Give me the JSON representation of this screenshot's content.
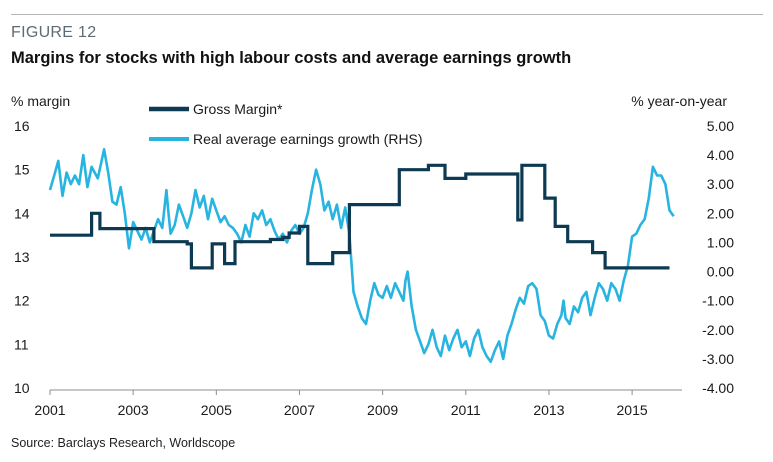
{
  "figure": {
    "label": "FIGURE 12",
    "title": "Margins for stocks with high labour costs and average earnings growth",
    "source": "Source: Barclays Research, Worldscope"
  },
  "chart_data": {
    "type": "line",
    "left_axis_label": "% margin",
    "right_axis_label": "% year-on-year",
    "ylim_left": [
      10,
      16
    ],
    "yticks_left": [
      "16",
      "15",
      "14",
      "13",
      "12",
      "11",
      "10"
    ],
    "ylim_right": [
      -4,
      5
    ],
    "yticks_right": [
      "5.00",
      "4.00",
      "3.00",
      "2.00",
      "1.00",
      "0.00",
      "-1.00",
      "-2.00",
      "-3.00",
      "-4.00"
    ],
    "xlim": [
      2001,
      2016.2
    ],
    "xticks": [
      "2001",
      "2003",
      "2005",
      "2007",
      "2009",
      "2011",
      "2013",
      "2015"
    ],
    "grid": false,
    "legend_position": "top-center",
    "colors": {
      "gross_margin": "#0d3a52",
      "earnings_growth": "#28b4e0"
    },
    "series": [
      {
        "name": "Gross Margin*",
        "axis": "left",
        "step": true,
        "points": [
          [
            2001.0,
            13.5
          ],
          [
            2002.0,
            14.0
          ],
          [
            2002.2,
            13.65
          ],
          [
            2003.5,
            13.35
          ],
          [
            2004.0,
            13.35
          ],
          [
            2004.3,
            13.3
          ],
          [
            2004.4,
            12.75
          ],
          [
            2004.9,
            13.3
          ],
          [
            2005.2,
            12.85
          ],
          [
            2005.45,
            13.35
          ],
          [
            2006.0,
            13.35
          ],
          [
            2006.3,
            13.4
          ],
          [
            2006.6,
            13.45
          ],
          [
            2006.75,
            13.55
          ],
          [
            2007.0,
            13.7
          ],
          [
            2007.2,
            12.85
          ],
          [
            2007.8,
            13.1
          ],
          [
            2008.2,
            14.2
          ],
          [
            2008.8,
            14.2
          ],
          [
            2009.4,
            15.0
          ],
          [
            2010.1,
            15.1
          ],
          [
            2010.5,
            14.8
          ],
          [
            2011.0,
            14.9
          ],
          [
            2011.6,
            14.9
          ],
          [
            2012.25,
            13.85
          ],
          [
            2012.35,
            15.1
          ],
          [
            2012.9,
            14.35
          ],
          [
            2013.15,
            13.7
          ],
          [
            2013.45,
            13.35
          ],
          [
            2014.05,
            13.1
          ],
          [
            2014.35,
            12.75
          ],
          [
            2015.9,
            12.75
          ]
        ]
      },
      {
        "name": "Real average  earnings growth (RHS)",
        "axis": "right",
        "step": false,
        "points": [
          [
            2001.0,
            2.8
          ],
          [
            2001.1,
            3.3
          ],
          [
            2001.2,
            3.8
          ],
          [
            2001.3,
            2.6
          ],
          [
            2001.4,
            3.4
          ],
          [
            2001.5,
            3.0
          ],
          [
            2001.6,
            3.3
          ],
          [
            2001.7,
            3.0
          ],
          [
            2001.8,
            4.0
          ],
          [
            2001.9,
            2.9
          ],
          [
            2002.0,
            3.6
          ],
          [
            2002.15,
            3.2
          ],
          [
            2002.3,
            4.2
          ],
          [
            2002.4,
            3.4
          ],
          [
            2002.5,
            2.4
          ],
          [
            2002.6,
            2.3
          ],
          [
            2002.7,
            2.9
          ],
          [
            2002.8,
            2.0
          ],
          [
            2002.9,
            0.8
          ],
          [
            2003.0,
            1.7
          ],
          [
            2003.1,
            1.4
          ],
          [
            2003.2,
            1.1
          ],
          [
            2003.3,
            1.5
          ],
          [
            2003.4,
            1.0
          ],
          [
            2003.5,
            1.4
          ],
          [
            2003.6,
            1.8
          ],
          [
            2003.7,
            1.5
          ],
          [
            2003.8,
            2.8
          ],
          [
            2003.85,
            2.0
          ],
          [
            2003.9,
            1.3
          ],
          [
            2004.0,
            1.6
          ],
          [
            2004.1,
            2.3
          ],
          [
            2004.2,
            1.9
          ],
          [
            2004.3,
            1.5
          ],
          [
            2004.4,
            2.0
          ],
          [
            2004.5,
            2.8
          ],
          [
            2004.6,
            2.2
          ],
          [
            2004.7,
            2.6
          ],
          [
            2004.8,
            1.8
          ],
          [
            2004.9,
            2.5
          ],
          [
            2005.0,
            2.1
          ],
          [
            2005.1,
            1.7
          ],
          [
            2005.2,
            1.9
          ],
          [
            2005.3,
            1.6
          ],
          [
            2005.4,
            1.5
          ],
          [
            2005.5,
            1.3
          ],
          [
            2005.6,
            1.0
          ],
          [
            2005.7,
            1.6
          ],
          [
            2005.8,
            1.2
          ],
          [
            2005.9,
            2.0
          ],
          [
            2006.0,
            1.8
          ],
          [
            2006.1,
            2.1
          ],
          [
            2006.2,
            1.6
          ],
          [
            2006.3,
            1.8
          ],
          [
            2006.4,
            1.4
          ],
          [
            2006.5,
            1.1
          ],
          [
            2006.6,
            1.3
          ],
          [
            2006.7,
            1.0
          ],
          [
            2006.8,
            1.4
          ],
          [
            2006.9,
            1.6
          ],
          [
            2007.0,
            1.3
          ],
          [
            2007.1,
            1.5
          ],
          [
            2007.2,
            2.0
          ],
          [
            2007.3,
            2.8
          ],
          [
            2007.4,
            3.5
          ],
          [
            2007.5,
            3.0
          ],
          [
            2007.6,
            2.1
          ],
          [
            2007.7,
            2.4
          ],
          [
            2007.8,
            1.8
          ],
          [
            2007.9,
            2.3
          ],
          [
            2008.0,
            1.5
          ],
          [
            2008.1,
            2.2
          ],
          [
            2008.2,
            1.3
          ],
          [
            2008.3,
            -0.7
          ],
          [
            2008.4,
            -1.2
          ],
          [
            2008.5,
            -1.6
          ],
          [
            2008.6,
            -1.8
          ],
          [
            2008.7,
            -1.0
          ],
          [
            2008.8,
            -0.4
          ],
          [
            2008.9,
            -0.8
          ],
          [
            2009.0,
            -0.9
          ],
          [
            2009.1,
            -0.5
          ],
          [
            2009.2,
            -0.9
          ],
          [
            2009.3,
            -0.4
          ],
          [
            2009.4,
            -0.7
          ],
          [
            2009.5,
            -1.0
          ],
          [
            2009.55,
            -0.3
          ],
          [
            2009.6,
            0.0
          ],
          [
            2009.7,
            -1.2
          ],
          [
            2009.8,
            -2.0
          ],
          [
            2009.9,
            -2.4
          ],
          [
            2010.0,
            -2.8
          ],
          [
            2010.1,
            -2.5
          ],
          [
            2010.2,
            -2.0
          ],
          [
            2010.3,
            -2.6
          ],
          [
            2010.4,
            -2.9
          ],
          [
            2010.5,
            -2.2
          ],
          [
            2010.6,
            -2.7
          ],
          [
            2010.7,
            -2.3
          ],
          [
            2010.8,
            -2.0
          ],
          [
            2010.9,
            -2.6
          ],
          [
            2011.0,
            -2.4
          ],
          [
            2011.1,
            -2.9
          ],
          [
            2011.2,
            -2.3
          ],
          [
            2011.3,
            -2.0
          ],
          [
            2011.4,
            -2.6
          ],
          [
            2011.5,
            -2.9
          ],
          [
            2011.6,
            -3.1
          ],
          [
            2011.7,
            -2.7
          ],
          [
            2011.8,
            -2.4
          ],
          [
            2011.9,
            -3.0
          ],
          [
            2012.0,
            -2.2
          ],
          [
            2012.1,
            -1.8
          ],
          [
            2012.2,
            -1.3
          ],
          [
            2012.3,
            -0.9
          ],
          [
            2012.4,
            -1.1
          ],
          [
            2012.5,
            -0.5
          ],
          [
            2012.6,
            -0.4
          ],
          [
            2012.7,
            -0.6
          ],
          [
            2012.8,
            -1.5
          ],
          [
            2012.9,
            -1.7
          ],
          [
            2013.0,
            -2.2
          ],
          [
            2013.1,
            -2.3
          ],
          [
            2013.2,
            -1.8
          ],
          [
            2013.3,
            -1.5
          ],
          [
            2013.35,
            -1.0
          ],
          [
            2013.4,
            -1.6
          ],
          [
            2013.5,
            -1.8
          ],
          [
            2013.6,
            -1.2
          ],
          [
            2013.7,
            -1.4
          ],
          [
            2013.8,
            -0.9
          ],
          [
            2013.9,
            -0.7
          ],
          [
            2014.0,
            -1.5
          ],
          [
            2014.1,
            -0.9
          ],
          [
            2014.2,
            -0.4
          ],
          [
            2014.3,
            -0.6
          ],
          [
            2014.4,
            -1.0
          ],
          [
            2014.5,
            -0.4
          ],
          [
            2014.6,
            -0.6
          ],
          [
            2014.7,
            -1.0
          ],
          [
            2014.8,
            -0.3
          ],
          [
            2014.9,
            0.2
          ],
          [
            2015.0,
            1.2
          ],
          [
            2015.1,
            1.3
          ],
          [
            2015.2,
            1.6
          ],
          [
            2015.3,
            1.8
          ],
          [
            2015.4,
            2.5
          ],
          [
            2015.5,
            3.6
          ],
          [
            2015.6,
            3.3
          ],
          [
            2015.7,
            3.3
          ],
          [
            2015.8,
            3.0
          ],
          [
            2015.9,
            2.1
          ],
          [
            2016.0,
            1.9
          ]
        ]
      }
    ]
  }
}
